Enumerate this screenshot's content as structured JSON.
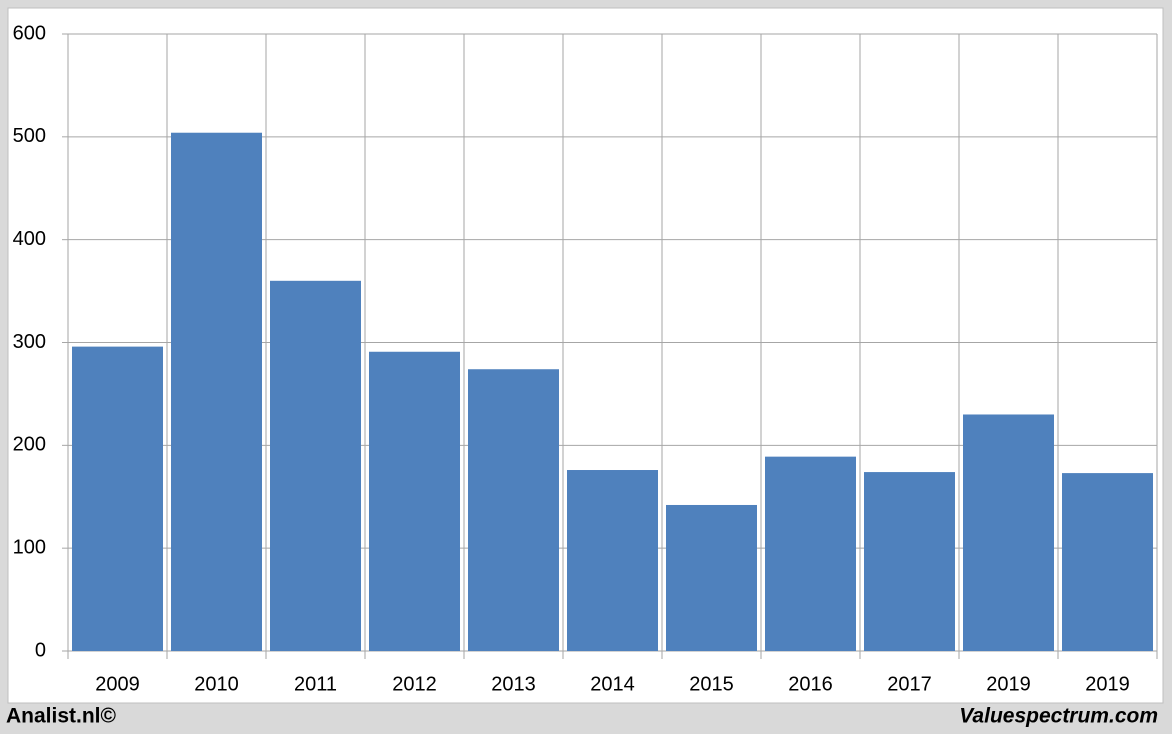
{
  "chart_data": {
    "type": "bar",
    "categories": [
      "2009",
      "2010",
      "2011",
      "2012",
      "2013",
      "2014",
      "2015",
      "2016",
      "2017",
      "2019",
      "2019"
    ],
    "values": [
      296,
      504,
      360,
      291,
      274,
      176,
      142,
      189,
      174,
      230,
      173
    ],
    "color": "#4f81bd",
    "ylim": [
      0,
      600
    ],
    "yticks": [
      0,
      100,
      200,
      300,
      400,
      500,
      600
    ],
    "grid": true
  },
  "footer": {
    "left": "Analist.nl©",
    "right": "Valuespectrum.com"
  }
}
